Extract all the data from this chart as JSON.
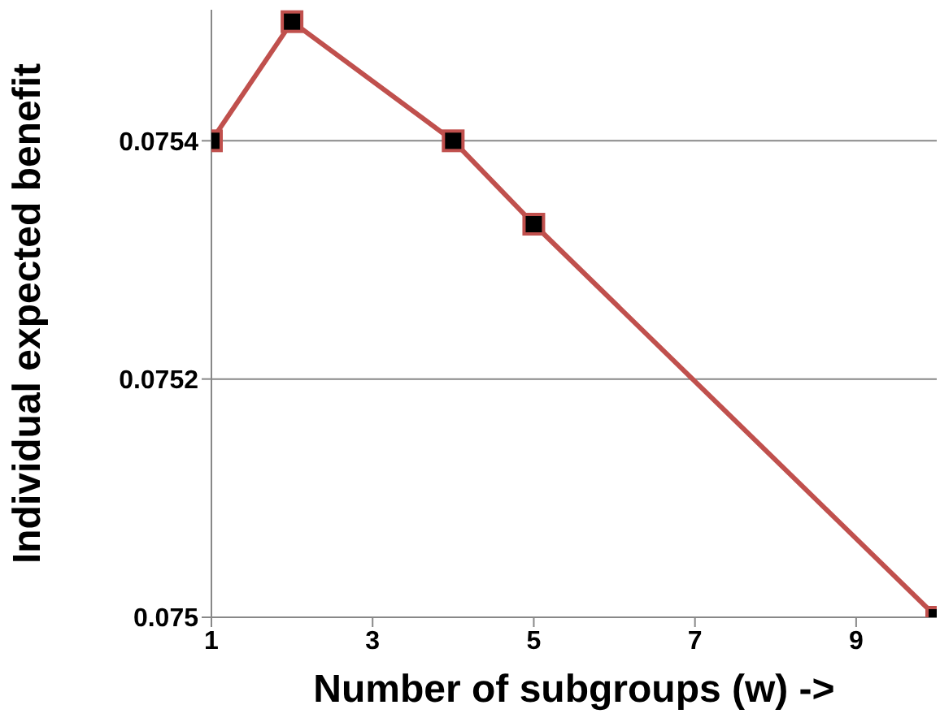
{
  "chart_data": {
    "type": "line",
    "xlabel": "Number of subgroups (w) ->",
    "ylabel": "Individual expected benefit",
    "x": [
      1,
      2,
      4,
      5,
      10
    ],
    "series": [
      {
        "color": "#c0504d",
        "values": [
          0.0754,
          0.0755,
          0.0754,
          0.07533,
          0.075
        ]
      }
    ],
    "xlim": [
      1,
      10
    ],
    "xticks": [
      1,
      3,
      5,
      7,
      9
    ],
    "ylim": [
      0.075,
      0.07551
    ],
    "yticks": [
      0.075,
      0.0752,
      0.0754
    ],
    "grid": "y",
    "marker": "square",
    "line_style": "solid"
  }
}
